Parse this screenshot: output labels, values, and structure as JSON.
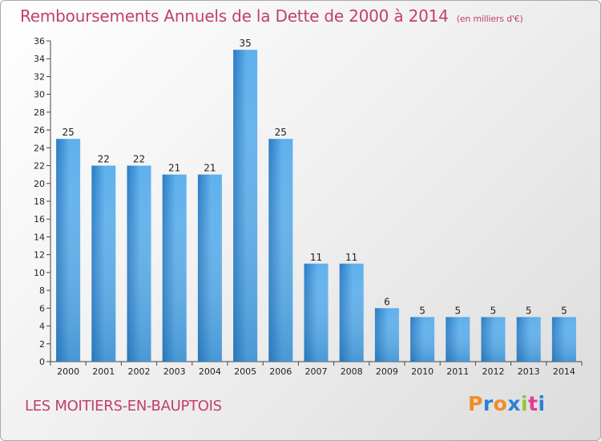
{
  "title": "Remboursements Annuels de la Dette de 2000 à 2014",
  "unit": "(en milliers d'€)",
  "city": "LES MOITIERS-EN-BAUPTOIS",
  "brand": "Proxiti",
  "brand_colors": [
    "#f28c28",
    "#2f7fd6",
    "#f28c28",
    "#2f7fd6",
    "#8fc63f",
    "#e43d8d",
    "#2f7fd6"
  ],
  "colors": {
    "title": "#c2406a",
    "bar_light": "#5fb0ec",
    "bar_dark": "#2a7cc4"
  },
  "chart_data": {
    "type": "bar",
    "title": "Remboursements Annuels de la Dette de 2000 à 2014",
    "categories": [
      "2000",
      "2001",
      "2002",
      "2003",
      "2004",
      "2005",
      "2006",
      "2007",
      "2008",
      "2009",
      "2010",
      "2011",
      "2012",
      "2013",
      "2014"
    ],
    "values": [
      25,
      22,
      22,
      21,
      21,
      35,
      25,
      11,
      11,
      6,
      5,
      5,
      5,
      5,
      5
    ],
    "ylim": [
      0,
      36
    ],
    "yticks": [
      0,
      2,
      4,
      6,
      8,
      10,
      12,
      14,
      16,
      18,
      20,
      22,
      24,
      26,
      28,
      30,
      32,
      34,
      36
    ],
    "grid": false,
    "data_labels": true
  }
}
